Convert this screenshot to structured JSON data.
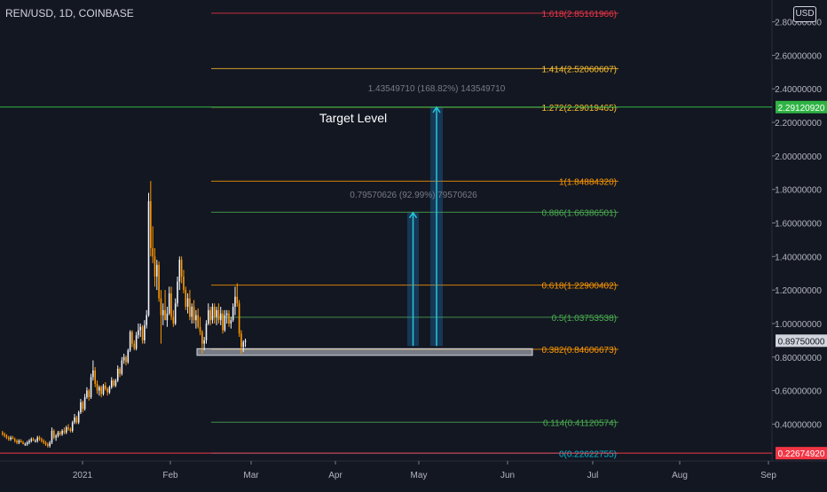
{
  "header": {
    "symbol": "REN/USD, 1D, COINBASE",
    "currency": "USD"
  },
  "colors": {
    "background": "#131722",
    "up": "#f0f3fa",
    "down": "#ff9800",
    "measure": "#2196f3",
    "price_tag": "#363a45",
    "red_tag": "#f23645",
    "green_tag": "#2fb344"
  },
  "annotations": {
    "target_label": "Target Level",
    "measure_large": "1.43549710 (168.82%) 143549710",
    "measure_small": "0.79570626 (92.99%) 79570626"
  },
  "price_tags": {
    "current": "0.89750000",
    "green_line": "2.29120920",
    "red_line": "0.22674920"
  },
  "chart_data": {
    "type": "candlestick",
    "symbol": "REN/USD",
    "interval": "1D",
    "exchange": "COINBASE",
    "y_range": [
      0.18,
      2.93
    ],
    "y_ticks": [
      {
        "value": 0.4,
        "label": "0.40000000"
      },
      {
        "value": 0.6,
        "label": "0.60000000"
      },
      {
        "value": 0.8,
        "label": "0.80000000"
      },
      {
        "value": 1.0,
        "label": "1.00000000"
      },
      {
        "value": 1.2,
        "label": "1.20000000"
      },
      {
        "value": 1.4,
        "label": "1.40000000"
      },
      {
        "value": 1.6,
        "label": "1.60000000"
      },
      {
        "value": 1.8,
        "label": "1.80000000"
      },
      {
        "value": 2.0,
        "label": "2.00000000"
      },
      {
        "value": 2.2,
        "label": "2.20000000"
      },
      {
        "value": 2.4,
        "label": "2.40000000"
      },
      {
        "value": 2.6,
        "label": "2.60000000"
      },
      {
        "value": 2.8,
        "label": "2.80000000"
      }
    ],
    "x_ticks": [
      "2021",
      "Feb",
      "Mar",
      "Apr",
      "May",
      "Jun",
      "Jul",
      "Aug",
      "Sep"
    ],
    "fib_levels": [
      {
        "label": "1.618(2.85161966)",
        "value": 2.85161966,
        "color": "#f23645"
      },
      {
        "label": "1.414(2.52060607)",
        "value": 2.52060607,
        "color": "#fbc02d"
      },
      {
        "label": "1.272(2.29019465)",
        "value": 2.29019465,
        "color": "#fbc02d"
      },
      {
        "label": "1(1.84884320)",
        "value": 1.8488432,
        "color": "#ff9800"
      },
      {
        "label": "0.886(1.66386501)",
        "value": 1.66386501,
        "color": "#4caf50"
      },
      {
        "label": "0.618(1.22900402)",
        "value": 1.22900402,
        "color": "#ff9800"
      },
      {
        "label": "0.5(1.03753538)",
        "value": 1.03753538,
        "color": "#4caf50"
      },
      {
        "label": "0.382(0.84606673)",
        "value": 0.84606673,
        "color": "#ff9800"
      },
      {
        "label": "0.114(0.41120574)",
        "value": 0.41120574,
        "color": "#4caf50"
      },
      {
        "label": "0(0.22622755)",
        "value": 0.22622755,
        "color": "#00bcd4"
      }
    ],
    "horizontal_lines": [
      {
        "value": 2.2912092,
        "color": "#2fb344"
      },
      {
        "value": 0.2267492,
        "color": "#f23645"
      }
    ],
    "support_zone": [
      0.81,
      0.85
    ],
    "candles_ohlc": [
      [
        0.35,
        0.36,
        0.33,
        0.34
      ],
      [
        0.34,
        0.35,
        0.32,
        0.33
      ],
      [
        0.33,
        0.34,
        0.31,
        0.32
      ],
      [
        0.32,
        0.33,
        0.3,
        0.31
      ],
      [
        0.31,
        0.33,
        0.3,
        0.32
      ],
      [
        0.32,
        0.33,
        0.31,
        0.31
      ],
      [
        0.31,
        0.32,
        0.29,
        0.3
      ],
      [
        0.3,
        0.31,
        0.28,
        0.29
      ],
      [
        0.29,
        0.31,
        0.28,
        0.3
      ],
      [
        0.3,
        0.31,
        0.29,
        0.29
      ],
      [
        0.29,
        0.3,
        0.28,
        0.28
      ],
      [
        0.28,
        0.29,
        0.27,
        0.28
      ],
      [
        0.28,
        0.3,
        0.27,
        0.29
      ],
      [
        0.29,
        0.31,
        0.28,
        0.3
      ],
      [
        0.3,
        0.32,
        0.29,
        0.31
      ],
      [
        0.31,
        0.32,
        0.3,
        0.3
      ],
      [
        0.3,
        0.31,
        0.29,
        0.3
      ],
      [
        0.3,
        0.33,
        0.29,
        0.32
      ],
      [
        0.32,
        0.33,
        0.3,
        0.31
      ],
      [
        0.31,
        0.32,
        0.29,
        0.3
      ],
      [
        0.3,
        0.31,
        0.28,
        0.29
      ],
      [
        0.29,
        0.3,
        0.27,
        0.28
      ],
      [
        0.28,
        0.29,
        0.26,
        0.27
      ],
      [
        0.27,
        0.3,
        0.26,
        0.29
      ],
      [
        0.29,
        0.38,
        0.28,
        0.36
      ],
      [
        0.36,
        0.37,
        0.31,
        0.32
      ],
      [
        0.32,
        0.34,
        0.3,
        0.33
      ],
      [
        0.33,
        0.36,
        0.32,
        0.35
      ],
      [
        0.35,
        0.36,
        0.33,
        0.34
      ],
      [
        0.34,
        0.37,
        0.33,
        0.36
      ],
      [
        0.36,
        0.38,
        0.34,
        0.35
      ],
      [
        0.35,
        0.39,
        0.34,
        0.38
      ],
      [
        0.38,
        0.4,
        0.36,
        0.37
      ],
      [
        0.37,
        0.38,
        0.35,
        0.36
      ],
      [
        0.36,
        0.42,
        0.35,
        0.41
      ],
      [
        0.41,
        0.46,
        0.4,
        0.44
      ],
      [
        0.44,
        0.45,
        0.4,
        0.41
      ],
      [
        0.41,
        0.48,
        0.4,
        0.47
      ],
      [
        0.47,
        0.55,
        0.46,
        0.53
      ],
      [
        0.53,
        0.54,
        0.47,
        0.49
      ],
      [
        0.49,
        0.58,
        0.48,
        0.56
      ],
      [
        0.56,
        0.62,
        0.55,
        0.6
      ],
      [
        0.6,
        0.61,
        0.54,
        0.56
      ],
      [
        0.56,
        0.7,
        0.55,
        0.68
      ],
      [
        0.68,
        0.78,
        0.66,
        0.72
      ],
      [
        0.72,
        0.74,
        0.62,
        0.64
      ],
      [
        0.64,
        0.66,
        0.58,
        0.6
      ],
      [
        0.6,
        0.63,
        0.57,
        0.62
      ],
      [
        0.62,
        0.63,
        0.56,
        0.58
      ],
      [
        0.58,
        0.64,
        0.57,
        0.63
      ],
      [
        0.63,
        0.65,
        0.6,
        0.61
      ],
      [
        0.61,
        0.62,
        0.57,
        0.59
      ],
      [
        0.59,
        0.63,
        0.58,
        0.62
      ],
      [
        0.62,
        0.68,
        0.61,
        0.66
      ],
      [
        0.66,
        0.67,
        0.62,
        0.63
      ],
      [
        0.63,
        0.67,
        0.62,
        0.66
      ],
      [
        0.66,
        0.75,
        0.65,
        0.73
      ],
      [
        0.73,
        0.74,
        0.68,
        0.7
      ],
      [
        0.7,
        0.8,
        0.69,
        0.78
      ],
      [
        0.78,
        0.82,
        0.76,
        0.8
      ],
      [
        0.8,
        0.81,
        0.75,
        0.77
      ],
      [
        0.77,
        0.85,
        0.76,
        0.84
      ],
      [
        0.84,
        0.96,
        0.83,
        0.95
      ],
      [
        0.95,
        0.96,
        0.86,
        0.88
      ],
      [
        0.88,
        0.9,
        0.84,
        0.85
      ],
      [
        0.85,
        0.95,
        0.84,
        0.93
      ],
      [
        0.93,
        1.0,
        0.91,
        0.96
      ],
      [
        0.96,
        1.0,
        0.92,
        0.98
      ],
      [
        0.98,
        0.99,
        0.88,
        0.9
      ],
      [
        0.9,
        1.02,
        0.88,
        0.99
      ],
      [
        0.99,
        1.08,
        0.97,
        1.05
      ],
      [
        1.05,
        1.78,
        1.04,
        1.73
      ],
      [
        1.73,
        1.85,
        1.4,
        1.45
      ],
      [
        1.45,
        1.58,
        1.36,
        1.4
      ],
      [
        1.4,
        1.45,
        1.22,
        1.28
      ],
      [
        1.28,
        1.38,
        1.2,
        1.35
      ],
      [
        1.35,
        1.37,
        1.13,
        1.15
      ],
      [
        1.15,
        1.2,
        0.88,
        1.05
      ],
      [
        1.05,
        1.12,
        0.99,
        1.08
      ],
      [
        1.08,
        1.2,
        1.02,
        1.02
      ],
      [
        1.02,
        1.1,
        0.98,
        1.06
      ],
      [
        1.06,
        1.22,
        1.05,
        1.18
      ],
      [
        1.18,
        1.22,
        1.02,
        1.04
      ],
      [
        1.04,
        1.08,
        0.98,
        1.0
      ],
      [
        1.0,
        1.15,
        0.99,
        1.12
      ],
      [
        1.12,
        1.28,
        1.1,
        1.25
      ],
      [
        1.25,
        1.4,
        1.2,
        1.38
      ],
      [
        1.38,
        1.4,
        1.24,
        1.28
      ],
      [
        1.28,
        1.32,
        1.18,
        1.2
      ],
      [
        1.2,
        1.22,
        1.08,
        1.1
      ],
      [
        1.1,
        1.18,
        1.06,
        1.15
      ],
      [
        1.15,
        1.2,
        1.02,
        1.04
      ],
      [
        1.04,
        1.12,
        1.0,
        1.1
      ],
      [
        1.1,
        1.14,
        1.0,
        1.02
      ],
      [
        1.02,
        1.08,
        0.97,
        1.05
      ],
      [
        1.05,
        1.09,
        0.97,
        0.98
      ],
      [
        0.98,
        1.04,
        0.93,
        0.95
      ],
      [
        0.95,
        0.96,
        0.82,
        0.88
      ],
      [
        0.88,
        0.92,
        0.84,
        0.9
      ],
      [
        0.9,
        1.02,
        0.88,
        1.0
      ],
      [
        1.0,
        1.12,
        0.99,
        1.08
      ],
      [
        1.08,
        1.1,
        0.99,
        1.02
      ],
      [
        1.02,
        1.12,
        1.0,
        1.1
      ],
      [
        1.1,
        1.12,
        1.0,
        1.04
      ],
      [
        1.04,
        1.1,
        0.99,
        1.08
      ],
      [
        1.08,
        1.12,
        1.0,
        1.02
      ],
      [
        1.02,
        1.1,
        0.99,
        1.06
      ],
      [
        1.06,
        1.08,
        0.94,
        0.96
      ],
      [
        0.96,
        1.08,
        0.95,
        1.05
      ],
      [
        1.05,
        1.08,
        1.0,
        1.06
      ],
      [
        1.06,
        1.08,
        0.98,
        1.0
      ],
      [
        1.0,
        1.04,
        0.97,
        1.02
      ],
      [
        1.02,
        1.12,
        1.01,
        1.1
      ],
      [
        1.1,
        1.22,
        1.05,
        1.16
      ],
      [
        1.16,
        1.24,
        1.1,
        1.12
      ],
      [
        1.12,
        1.14,
        0.92,
        0.94
      ],
      [
        0.94,
        0.96,
        0.82,
        0.86
      ],
      [
        0.86,
        0.9,
        0.83,
        0.89
      ],
      [
        0.89,
        0.91,
        0.86,
        0.897
      ]
    ]
  }
}
